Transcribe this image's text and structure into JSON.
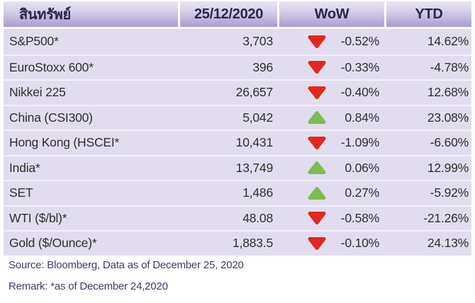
{
  "chart_data": {
    "type": "table",
    "headers": [
      "สินทรัพย์",
      "25/12/2020",
      "WoW",
      "YTD"
    ],
    "rows": [
      {
        "asset": "S&P500*",
        "value": "3,703",
        "direction": "down",
        "wow": "-0.52%",
        "ytd": "14.62%"
      },
      {
        "asset": "EuroStoxx 600*",
        "value": "396",
        "direction": "down",
        "wow": "-0.33%",
        "ytd": "-4.78%"
      },
      {
        "asset": "Nikkei 225",
        "value": "26,657",
        "direction": "down",
        "wow": "-0.40%",
        "ytd": "12.68%"
      },
      {
        "asset": "China (CSI300)",
        "value": "5,042",
        "direction": "up",
        "wow": "0.84%",
        "ytd": "23.08%"
      },
      {
        "asset": "Hong Kong (HSCEI*",
        "value": "10,431",
        "direction": "down",
        "wow": "-1.09%",
        "ytd": "-6.60%"
      },
      {
        "asset": "India*",
        "value": "13,749",
        "direction": "up",
        "wow": "0.06%",
        "ytd": "12.99%"
      },
      {
        "asset": "SET",
        "value": "1,486",
        "direction": "up",
        "wow": "0.27%",
        "ytd": "-5.92%"
      },
      {
        "asset": "WTI ($/bl)*",
        "value": "48.08",
        "direction": "down",
        "wow": "-0.58%",
        "ytd": "-21.26%"
      },
      {
        "asset": "Gold ($/Ounce)*",
        "value": "1,883.5",
        "direction": "down",
        "wow": "-0.10%",
        "ytd": "24.13%"
      }
    ]
  },
  "footer": {
    "source": "Source: Bloomberg, Data as of December 25, 2020",
    "remark": "Remark: *as of December 24,2020"
  },
  "colors": {
    "up_triangle": "#80ba51",
    "down_triangle": "#e3271f",
    "header_gradient_top": "#e9e5f3",
    "header_gradient_bottom": "#a99bd1",
    "row_background": "#e2ddee",
    "header_text": "#2b2745",
    "body_text": "#2f2f2f",
    "footer_text": "#3e3e66"
  }
}
